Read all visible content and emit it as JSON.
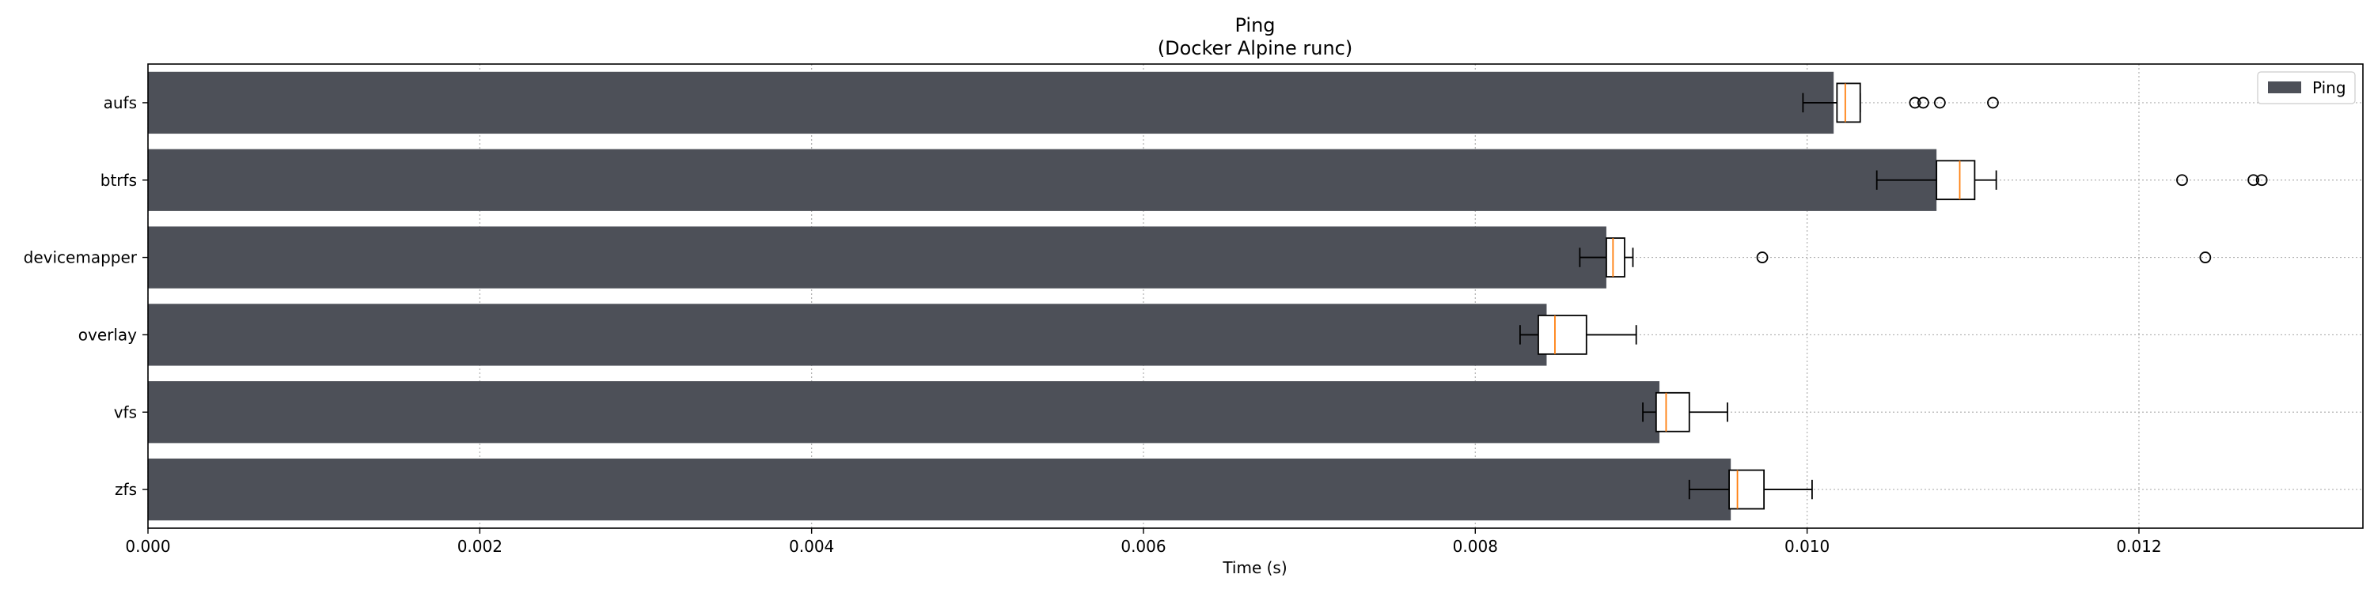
{
  "chart_data": {
    "type": "bar",
    "orientation": "horizontal",
    "title": "Ping",
    "subtitle": "(Docker Alpine runc)",
    "xlabel": "Time (s)",
    "ylabel": "",
    "xlim": [
      0,
      0.01335
    ],
    "xticks": [
      0.0,
      0.002,
      0.004,
      0.006,
      0.008,
      0.01,
      0.012
    ],
    "xtick_labels": [
      "0.000",
      "0.002",
      "0.004",
      "0.006",
      "0.008",
      "0.010",
      "0.012"
    ],
    "grid": true,
    "legend": {
      "placement": "top-right",
      "entries": [
        "Ping"
      ]
    },
    "colors": {
      "bar": "#4d5058",
      "median": "#ff7f0e",
      "box": "#000000",
      "grid": "#b0b0b0"
    },
    "categories": [
      "aufs",
      "btrfs",
      "devicemapper",
      "overlay",
      "vfs",
      "zfs"
    ],
    "series": [
      {
        "name": "Ping",
        "values": [
          0.01016,
          0.01078,
          0.00879,
          0.00843,
          0.00911,
          0.00954
        ]
      }
    ],
    "boxplots": [
      {
        "category": "aufs",
        "whislo": 0.009975,
        "q1": 0.01018,
        "med": 0.01023,
        "q3": 0.01032,
        "whishi": 0.01032,
        "fliers": [
          0.01065,
          0.0107,
          0.0108,
          0.01112
        ]
      },
      {
        "category": "btrfs",
        "whislo": 0.01042,
        "q1": 0.01078,
        "med": 0.01092,
        "q3": 0.01101,
        "whishi": 0.01114,
        "fliers": [
          0.01226,
          0.01269,
          0.01274
        ]
      },
      {
        "category": "devicemapper",
        "whislo": 0.00863,
        "q1": 0.00879,
        "med": 0.00883,
        "q3": 0.0089,
        "whishi": 0.00895,
        "fliers": [
          0.00973,
          0.0124
        ]
      },
      {
        "category": "overlay",
        "whislo": 0.00827,
        "q1": 0.00838,
        "med": 0.00848,
        "q3": 0.00867,
        "whishi": 0.00897,
        "fliers": []
      },
      {
        "category": "vfs",
        "whislo": 0.00901,
        "q1": 0.00909,
        "med": 0.00915,
        "q3": 0.00929,
        "whishi": 0.00952,
        "fliers": []
      },
      {
        "category": "zfs",
        "whislo": 0.00929,
        "q1": 0.00953,
        "med": 0.00958,
        "q3": 0.00974,
        "whishi": 0.01003,
        "fliers": []
      }
    ]
  }
}
